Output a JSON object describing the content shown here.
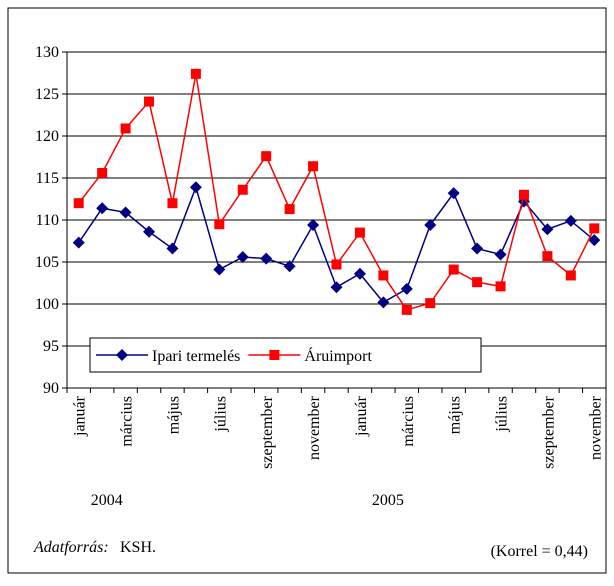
{
  "chart_data": {
    "type": "line",
    "categories": [
      "január",
      null,
      "március",
      null,
      "május",
      null,
      "július",
      null,
      "szeptember",
      null,
      "november",
      null,
      "január",
      null,
      "március",
      null,
      "május",
      null,
      "július",
      null,
      "szeptember",
      null,
      "november"
    ],
    "group_labels": [
      "2004",
      "2005"
    ],
    "series": [
      {
        "name": "Ipari termelés",
        "color": "#000080",
        "marker": "diamond",
        "values": [
          107.3,
          111.4,
          110.9,
          108.6,
          106.6,
          113.9,
          104.1,
          105.6,
          105.4,
          104.5,
          109.4,
          102.0,
          103.6,
          100.2,
          101.8,
          109.4,
          113.2,
          106.6,
          105.9,
          112.2,
          108.9,
          109.9,
          107.6
        ]
      },
      {
        "name": "Áruimport",
        "color": "#ff0000",
        "marker": "square",
        "values": [
          112.0,
          115.6,
          120.9,
          124.1,
          112.0,
          127.4,
          109.5,
          113.6,
          117.6,
          111.3,
          116.4,
          104.7,
          108.5,
          103.4,
          99.3,
          100.1,
          104.1,
          102.6,
          102.1,
          113.0,
          105.7,
          103.4,
          109.0
        ]
      }
    ],
    "ylim": [
      90,
      130
    ],
    "yticks": [
      90,
      95,
      100,
      105,
      110,
      115,
      120,
      125,
      130
    ],
    "grid": true,
    "source_label": "Adatforrás:",
    "source": "KSH.",
    "note": "(Korrel = 0,44)"
  }
}
